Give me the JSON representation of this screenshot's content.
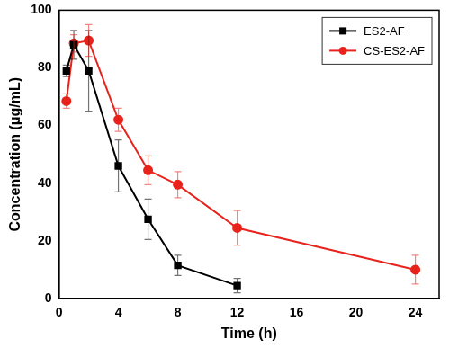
{
  "chart_data": {
    "type": "line",
    "x_label": "Time (h)",
    "y_label": "Concentration (μg/mL)",
    "x": [
      0.5,
      1,
      2,
      4,
      6,
      8,
      12,
      24
    ],
    "series": [
      {
        "name": "ES2-AF",
        "color": "#000000",
        "marker": "square",
        "line_style": "solid",
        "values": [
          79,
          88,
          79,
          46,
          27.5,
          11.5,
          4.5,
          null
        ],
        "errors": [
          2,
          5,
          14,
          9,
          7,
          3.5,
          2.5,
          null
        ]
      },
      {
        "name": "CS-ES2-AF",
        "color": "#e8231c",
        "marker": "circle",
        "line_style": "solid",
        "values": [
          68.5,
          88.5,
          89.5,
          62,
          44.5,
          39.5,
          24.5,
          10
        ],
        "errors": [
          2.5,
          3,
          5.5,
          4,
          5,
          4.5,
          6,
          5
        ]
      }
    ],
    "xlim": [
      0,
      25.6
    ],
    "xticks": [
      0,
      4,
      8,
      12,
      16,
      20,
      24
    ],
    "ylim": [
      0,
      100
    ],
    "yticks": [
      0,
      20,
      40,
      60,
      80,
      100
    ],
    "grid": false,
    "legend": "top-right"
  }
}
